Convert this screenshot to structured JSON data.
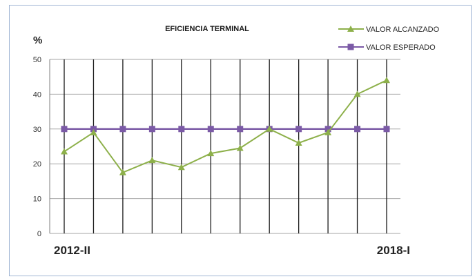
{
  "chart_data": {
    "type": "line",
    "title": "EFICIENCIA TERMINAL",
    "ylabel": "%",
    "ylim": [
      0,
      50
    ],
    "yticks": [
      0,
      10,
      20,
      30,
      40,
      50
    ],
    "grid": true,
    "legend_position": "top-right",
    "x_start_label": "2012-II",
    "x_end_label": "2018-I",
    "x": [
      1,
      2,
      3,
      4,
      5,
      6,
      7,
      8,
      9,
      10,
      11,
      12
    ],
    "series": [
      {
        "name": "VALOR ALCANZADO",
        "color": "#8db04a",
        "marker": "triangle",
        "values": [
          23.5,
          29,
          17.5,
          21,
          19,
          23,
          24.5,
          30,
          26,
          29,
          40,
          44
        ]
      },
      {
        "name": "VALOR ESPERADO",
        "color": "#7b5aa6",
        "marker": "square",
        "values": [
          30,
          30,
          30,
          30,
          30,
          30,
          30,
          30,
          30,
          30,
          30,
          30
        ]
      }
    ]
  }
}
